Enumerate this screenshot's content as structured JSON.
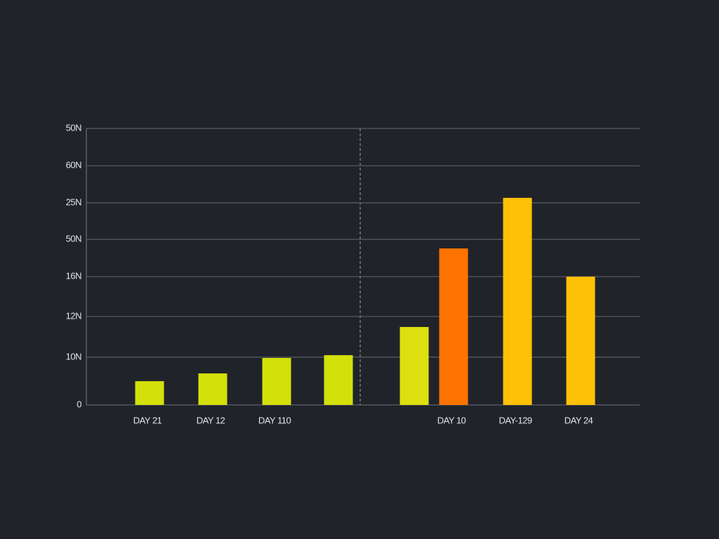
{
  "chart_data": {
    "type": "bar",
    "categories": [
      "DAY 21",
      "DAY 12",
      "DAY 110",
      null,
      null,
      "DAY 10",
      "DAY-129",
      "DAY 24"
    ],
    "values": [
      8.6,
      11.4,
      17.0,
      18.0,
      28.2,
      56.6,
      74.9,
      46.4
    ],
    "colors": [
      "#d4e00a",
      "#d4e00a",
      "#d4e00a",
      "#d4e00a",
      "#dde010",
      "#ff7300",
      "#ffc107",
      "#ffc107"
    ],
    "ylim": [
      0,
      100
    ],
    "yticks": [
      0,
      {
        "value": 17.3,
        "label": "10N"
      },
      {
        "value": 32,
        "label": "12N"
      },
      {
        "value": 46.4,
        "label": "16N"
      },
      {
        "value": 59.9,
        "label": "50N"
      },
      {
        "value": 73.1,
        "label": "25N"
      },
      {
        "value": 86.5,
        "label": "60N"
      },
      {
        "value": 100,
        "label": "50N"
      }
    ],
    "grid": true
  }
}
